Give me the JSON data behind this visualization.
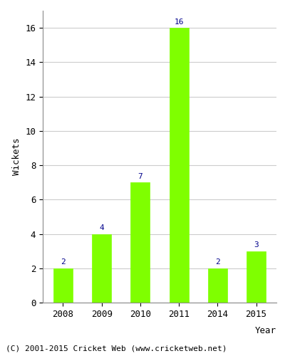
{
  "categories": [
    "2008",
    "2009",
    "2010",
    "2011",
    "2014",
    "2015"
  ],
  "values": [
    2,
    4,
    7,
    16,
    2,
    3
  ],
  "bar_color": "#7fff00",
  "bar_edgecolor": "#7fff00",
  "label_color": "#00008b",
  "xlabel": "Year",
  "ylabel": "Wickets",
  "ylim": [
    0,
    17
  ],
  "yticks": [
    0,
    2,
    4,
    6,
    8,
    10,
    12,
    14,
    16
  ],
  "grid_color": "#cccccc",
  "background_color": "#ffffff",
  "footer_text": "(C) 2001-2015 Cricket Web (www.cricketweb.net)",
  "label_fontsize": 8,
  "axis_fontsize": 9,
  "footer_fontsize": 8,
  "tick_fontsize": 9
}
